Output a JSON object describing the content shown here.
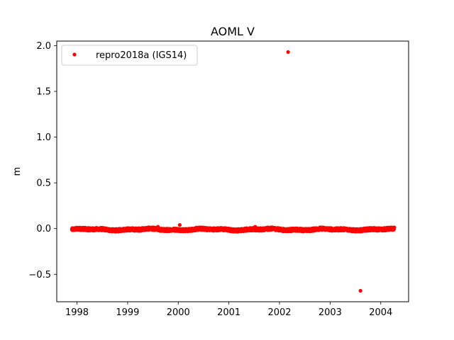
{
  "chart_data": {
    "type": "scatter",
    "title": "AOML V",
    "xlabel": "",
    "ylabel": "m",
    "xlim": [
      1997.6,
      2004.55
    ],
    "ylim": [
      -0.8,
      2.05
    ],
    "xticks": [
      "1998",
      "1999",
      "2000",
      "2001",
      "2002",
      "2003",
      "2004"
    ],
    "yticks": [
      "2.0",
      "1.5",
      "1.0",
      "0.5",
      "0.0",
      "−0.5"
    ],
    "grid": false,
    "legend": {
      "placement": "top-left",
      "entries": [
        "repro2018a (IGS14)"
      ]
    },
    "series": [
      {
        "name": "repro2018a (IGS14)",
        "color": "#ff0000",
        "marker": "circle",
        "x_range": [
          1997.9,
          2004.27
        ],
        "baseline_value": -0.01,
        "scatter_amplitude": 0.015,
        "outliers": [
          {
            "x": 2002.17,
            "y": 1.93
          },
          {
            "x": 2003.6,
            "y": -0.68
          },
          {
            "x": 1999.6,
            "y": 0.02
          },
          {
            "x": 2000.03,
            "y": 0.04
          },
          {
            "x": 2001.52,
            "y": 0.02
          }
        ]
      }
    ]
  }
}
